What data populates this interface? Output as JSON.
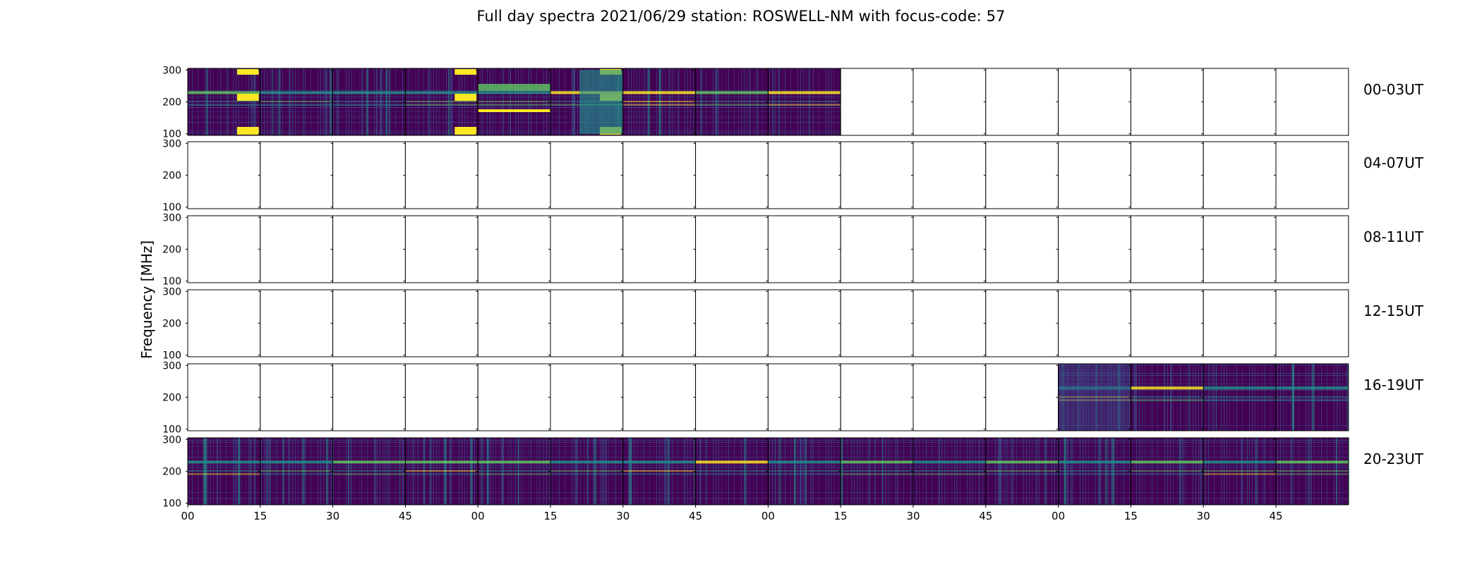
{
  "chart_data": {
    "type": "heatmap",
    "title": "Full day spectra 2021/06/29 station: ROSWELL-NM with focus-code: 57",
    "ylabel": "Frequency [MHz]",
    "xlabel": "",
    "rows": [
      "00-03UT",
      "04-07UT",
      "08-11UT",
      "12-15UT",
      "16-19UT",
      "20-23UT"
    ],
    "columns_per_row": 16,
    "minutes_per_column": 15,
    "y_ticks": [
      100,
      200,
      300
    ],
    "ylim": [
      95,
      305
    ],
    "x_tick_labels": [
      "00",
      "15",
      "30",
      "45",
      "00",
      "15",
      "30",
      "45",
      "00",
      "15",
      "30",
      "45",
      "00",
      "15",
      "30",
      "45"
    ],
    "colormap": [
      "#440154",
      "#3b528b",
      "#21918c",
      "#5ec962",
      "#fde725"
    ],
    "data_availability": [
      {
        "row": "00-03UT",
        "filled_columns": [
          0,
          1,
          2,
          3,
          4,
          5,
          6,
          7,
          8
        ],
        "empty_columns": [
          9,
          10,
          11,
          12,
          13,
          14,
          15
        ]
      },
      {
        "row": "04-07UT",
        "filled_columns": [],
        "empty_columns": [
          0,
          1,
          2,
          3,
          4,
          5,
          6,
          7,
          8,
          9,
          10,
          11,
          12,
          13,
          14,
          15
        ]
      },
      {
        "row": "08-11UT",
        "filled_columns": [],
        "empty_columns": [
          0,
          1,
          2,
          3,
          4,
          5,
          6,
          7,
          8,
          9,
          10,
          11,
          12,
          13,
          14,
          15
        ]
      },
      {
        "row": "12-15UT",
        "filled_columns": [],
        "empty_columns": [
          0,
          1,
          2,
          3,
          4,
          5,
          6,
          7,
          8,
          9,
          10,
          11,
          12,
          13,
          14,
          15
        ]
      },
      {
        "row": "16-19UT",
        "filled_columns": [
          12,
          13,
          14,
          15
        ],
        "empty_columns": [
          0,
          1,
          2,
          3,
          4,
          5,
          6,
          7,
          8,
          9,
          10,
          11
        ]
      },
      {
        "row": "20-23UT",
        "filled_columns": [
          0,
          1,
          2,
          3,
          4,
          5,
          6,
          7,
          8,
          9,
          10,
          11,
          12,
          13,
          14,
          15
        ],
        "empty_columns": []
      }
    ],
    "bright_bands_mhz": [
      230,
      200,
      190
    ],
    "grid": false,
    "legend": "none"
  }
}
